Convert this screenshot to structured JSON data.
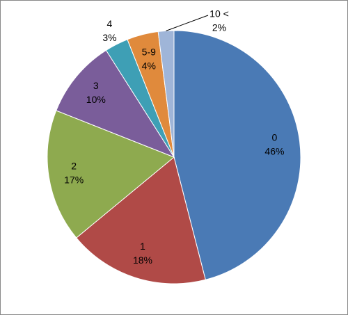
{
  "chart_data": {
    "type": "pie",
    "categories": [
      "0",
      "1",
      "2",
      "3",
      "4",
      "5-9",
      "10 <"
    ],
    "values": [
      46,
      18,
      17,
      10,
      3,
      4,
      2
    ],
    "value_labels": [
      "46%",
      "18%",
      "17%",
      "10%",
      "3%",
      "4%",
      "2%"
    ],
    "colors": [
      "#4a7ab5",
      "#b04a47",
      "#8eaa4f",
      "#7a5d9a",
      "#3e9fb5",
      "#e08a3c",
      "#9fb5d8"
    ]
  }
}
